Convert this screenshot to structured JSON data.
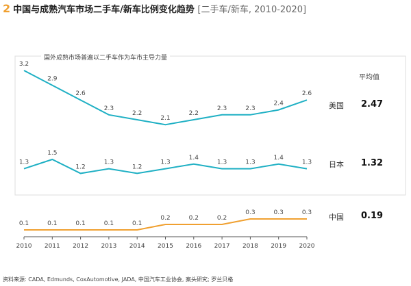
{
  "title": {
    "number": "2",
    "main": "中国与成熟汽车市场二手车/新车比例变化趋势",
    "sub": "[二手车/新车, 2010-2020]"
  },
  "box_label": "国外成熟市场普遍以二手车作为车市主导力量",
  "average_header": "平均值",
  "source": "资料来源: CADA, Edmunds, CoxAutomotive, JADA, 中国汽车工业协会, 案头研究; 罗兰贝格",
  "chart_data": {
    "type": "line",
    "categories": [
      "2010",
      "2011",
      "2012",
      "2013",
      "2014",
      "2015",
      "2016",
      "2017",
      "2018",
      "2019",
      "2020"
    ],
    "series": [
      {
        "name": "美国",
        "average": "2.47",
        "color": "#1fb0c4",
        "values": [
          3.2,
          2.9,
          2.6,
          2.3,
          2.2,
          2.1,
          2.2,
          2.3,
          2.3,
          2.4,
          2.6
        ]
      },
      {
        "name": "日本",
        "average": "1.32",
        "color": "#1fb0c4",
        "values": [
          1.3,
          1.5,
          1.2,
          1.3,
          1.2,
          1.3,
          1.4,
          1.3,
          1.3,
          1.4,
          1.3
        ]
      },
      {
        "name": "中国",
        "average": "0.19",
        "color": "#f0a030",
        "values": [
          0.1,
          0.1,
          0.1,
          0.1,
          0.1,
          0.2,
          0.2,
          0.2,
          0.3,
          0.3,
          0.3
        ]
      }
    ],
    "grid": false,
    "legend": "right"
  }
}
